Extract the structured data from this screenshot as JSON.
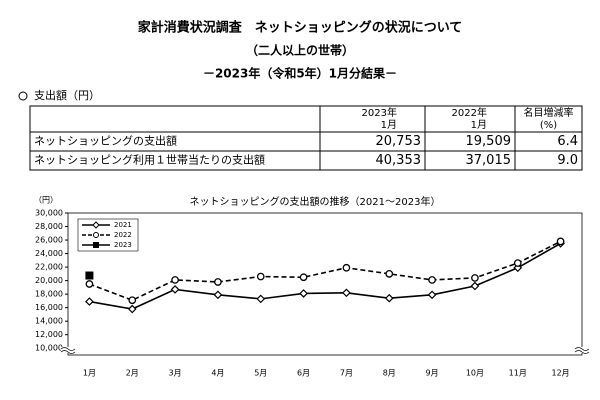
{
  "header": {
    "title": "家計消費状況調査　ネットショッピングの状況について",
    "subtitle": "（二人以上の世帯）",
    "period": "－2023年（令和5年）1月分結果－"
  },
  "section": "支出額（円）",
  "table": {
    "header": [
      [
        "2023年",
        "1月"
      ],
      [
        "2022年",
        "1月"
      ],
      [
        "名目増減率",
        "(%)"
      ]
    ],
    "rows": [
      [
        "ネットショッピングの支出額",
        "20,753",
        "19,509",
        "6.4"
      ],
      [
        "ネットショッピング利用１世帯当たりの支出額",
        "40,353",
        "37,015",
        "9.0"
      ]
    ]
  },
  "chart_data": {
    "type": "line",
    "title": "ネットショッピングの支出額の推移（2021～2023年）",
    "y_label": "（円）",
    "categories": [
      "1月",
      "2月",
      "3月",
      "4月",
      "5月",
      "6月",
      "7月",
      "8月",
      "9月",
      "10月",
      "11月",
      "12月"
    ],
    "series": [
      {
        "name": "2021",
        "color": "#000000",
        "marker": "diamond",
        "dash": false,
        "values": [
          16900,
          15800,
          18700,
          17900,
          17300,
          18100,
          18200,
          17400,
          17900,
          19200,
          21900,
          25500
        ]
      },
      {
        "name": "2022",
        "color": "#000000",
        "marker": "circle",
        "dash": true,
        "values": [
          19500,
          17100,
          20100,
          19800,
          20600,
          20500,
          21900,
          21000,
          20100,
          20400,
          22600,
          25800
        ]
      },
      {
        "name": "2023",
        "color": "#000000",
        "marker": "square",
        "dash": false,
        "values": [
          20753,
          null,
          null,
          null,
          null,
          null,
          null,
          null,
          null,
          null,
          null,
          null
        ]
      }
    ],
    "ylim": [
      9000,
      30000
    ],
    "yticks": [
      {
        "value": 10000,
        "label": "10,000"
      },
      {
        "value": 12000,
        "label": "12,000"
      },
      {
        "value": 14000,
        "label": "14,000"
      },
      {
        "value": 16000,
        "label": "16,000"
      },
      {
        "value": 18000,
        "label": "18,000"
      },
      {
        "value": 20000,
        "label": "20,000"
      },
      {
        "value": 22000,
        "label": "22,000"
      },
      {
        "value": 24000,
        "label": "24,000"
      },
      {
        "value": 26000,
        "label": "26,000"
      },
      {
        "value": 28000,
        "label": "28,000"
      },
      {
        "value": 30000,
        "label": "30,000"
      }
    ],
    "legend": "upper left"
  }
}
